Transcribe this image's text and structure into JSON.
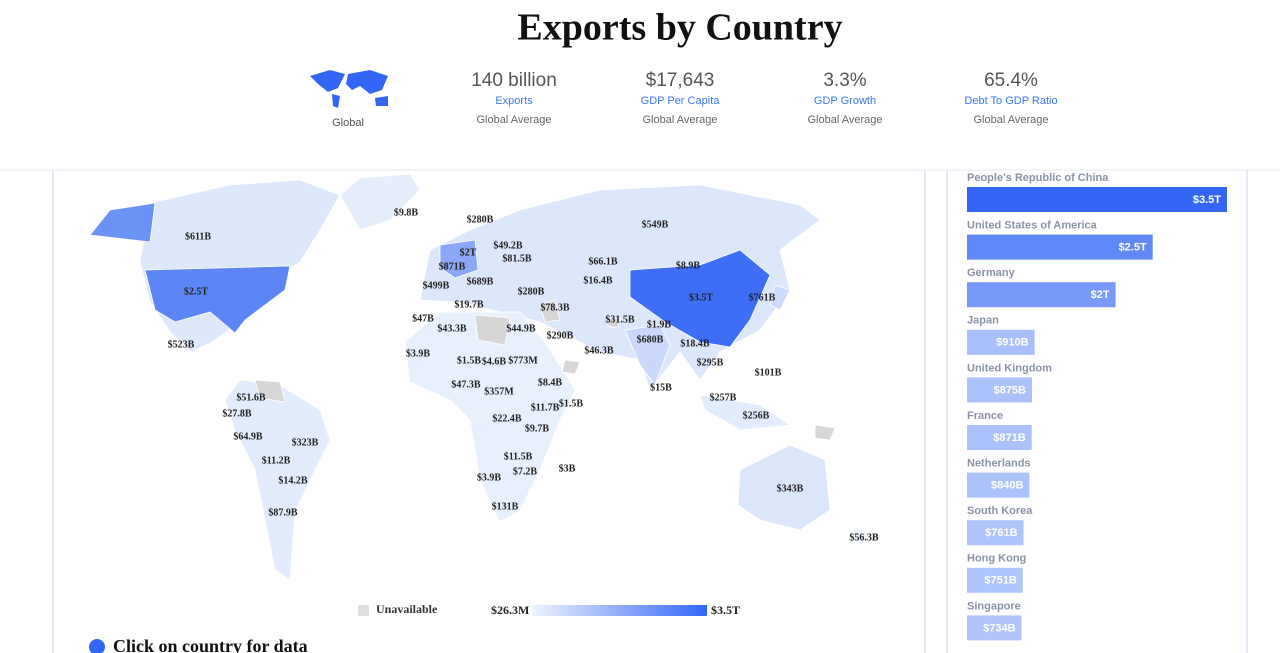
{
  "header": {
    "title": "Exports by Country",
    "global_label": "Global",
    "stats": [
      {
        "value": "140 billion",
        "label": "Exports",
        "sub": "Global Average"
      },
      {
        "value": "$17,643",
        "label": "GDP Per Capita",
        "sub": "Global Average"
      },
      {
        "value": "3.3%",
        "label": "GDP Growth",
        "sub": "Global Average"
      },
      {
        "value": "65.4%",
        "label": "Debt To GDP Ratio",
        "sub": "Global Average"
      }
    ]
  },
  "map": {
    "labels": [
      "$9.8B",
      "$280B",
      "$549B",
      "$611B",
      "$49.2B",
      "$2T",
      "$81.5B",
      "$871B",
      "$66.1B",
      "$8.9B",
      "$16.4B",
      "$689B",
      "$499B",
      "$280B",
      "$2.5T",
      "$3.5T",
      "$761B",
      "$19.7B",
      "$78.3B",
      "$47B",
      "$31.5B",
      "$1.9B",
      "$43.3B",
      "$44.9B",
      "$290B",
      "$680B",
      "$523B",
      "$18.4B",
      "$46.3B",
      "$3.9B",
      "$1.5B",
      "$4.6B",
      "$773M",
      "$295B",
      "$101B",
      "$8.4B",
      "$47.3B",
      "$15B",
      "$357M",
      "$51.6B",
      "$257B",
      "$1.5B",
      "$11.7B",
      "$27.8B",
      "$256B",
      "$22.4B",
      "$9.7B",
      "$64.9B",
      "$323B",
      "$11.5B",
      "$11.2B",
      "$3B",
      "$7.2B",
      "$3.9B",
      "$14.2B",
      "$343B",
      "$131B",
      "$87.9B",
      "$56.3B"
    ],
    "legend": {
      "unavailable": "Unavailable",
      "min_label": "$26.3M",
      "max_label": "$3.5T",
      "colors": [
        "#eef4fe",
        "#3366f5"
      ]
    },
    "cta": "Click on country for data"
  },
  "chart_data": {
    "type": "bar",
    "categories": [
      "People's Republic of China",
      "United States of America",
      "Germany",
      "Japan",
      "United Kingdom",
      "France",
      "Netherlands",
      "South Korea",
      "Hong Kong",
      "Singapore"
    ],
    "values": [
      3500,
      2500,
      2000,
      910,
      875,
      871,
      840,
      761,
      751,
      734
    ],
    "value_labels": [
      "$3.5T",
      "$2.5T",
      "$2T",
      "$910B",
      "$875B",
      "$871B",
      "$840B",
      "$761B",
      "$751B",
      "$734B"
    ]
  }
}
